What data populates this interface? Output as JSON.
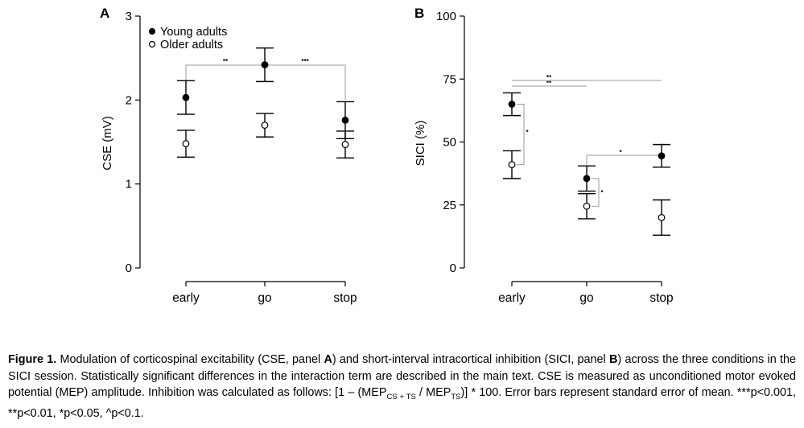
{
  "chart_data": [
    {
      "type": "scatter",
      "panel_label": "A",
      "ylabel": "CSE (mV)",
      "categories": [
        "early",
        "go",
        "stop"
      ],
      "ylim": [
        0,
        3
      ],
      "yticks": [
        "0",
        "1",
        "2",
        "3"
      ],
      "series": [
        {
          "name": "Young adults",
          "marker": "filled",
          "values": [
            2.03,
            2.42,
            1.76
          ],
          "error": [
            0.2,
            0.2,
            0.22
          ]
        },
        {
          "name": "Older adults",
          "marker": "open",
          "values": [
            1.48,
            1.7,
            1.47
          ],
          "error": [
            0.16,
            0.14,
            0.16
          ]
        }
      ],
      "significance": [
        {
          "from": "early",
          "to": "go",
          "label": "**"
        },
        {
          "from": "go",
          "to": "stop",
          "label": "***"
        }
      ],
      "legend": "top-left"
    },
    {
      "type": "scatter",
      "panel_label": "B",
      "ylabel": "SICI (%)",
      "categories": [
        "early",
        "go",
        "stop"
      ],
      "ylim": [
        0,
        100
      ],
      "yticks": [
        "0",
        "25",
        "50",
        "75",
        "100"
      ],
      "series": [
        {
          "name": "Young adults",
          "marker": "filled",
          "values": [
            65,
            35.5,
            44.5
          ],
          "error": [
            4.5,
            5,
            4.5
          ]
        },
        {
          "name": "Older adults",
          "marker": "open",
          "values": [
            41,
            24.5,
            20
          ],
          "error": [
            5.5,
            5,
            7
          ]
        }
      ],
      "significance": [
        {
          "from": "early",
          "to": "go",
          "label": "**",
          "type": "horizontal"
        },
        {
          "from": "early",
          "to": "stop",
          "label": "**",
          "type": "horizontal"
        },
        {
          "at": "early",
          "label": "*",
          "type": "vertical"
        },
        {
          "at": "go",
          "label": "*",
          "type": "vertical"
        },
        {
          "from": "go",
          "to": "stop",
          "label": "*",
          "type": "horizontal"
        }
      ]
    }
  ],
  "caption": {
    "title": "Figure 1.",
    "pre": " Modulation of corticospinal excitability (CSE, panel ",
    "a": "A",
    "mid": ") and short-interval intracortical inhibition (SICI, panel ",
    "b": "B",
    "post": ") across the three conditions in the SICI session. Statistically significant differences in the interaction term are described in the main text. CSE is measured as unconditioned motor evoked potential (MEP) amplitude. Inhibition was calculated as follows: [1 – (MEP",
    "sub1": "CS + TS",
    "slash": " / MEP",
    "sub2": "TS",
    "end": ")] * 100. Error bars represent standard error of mean. ***p<0.001, **p<0.01, *p<0.05, ^p<0.1."
  }
}
